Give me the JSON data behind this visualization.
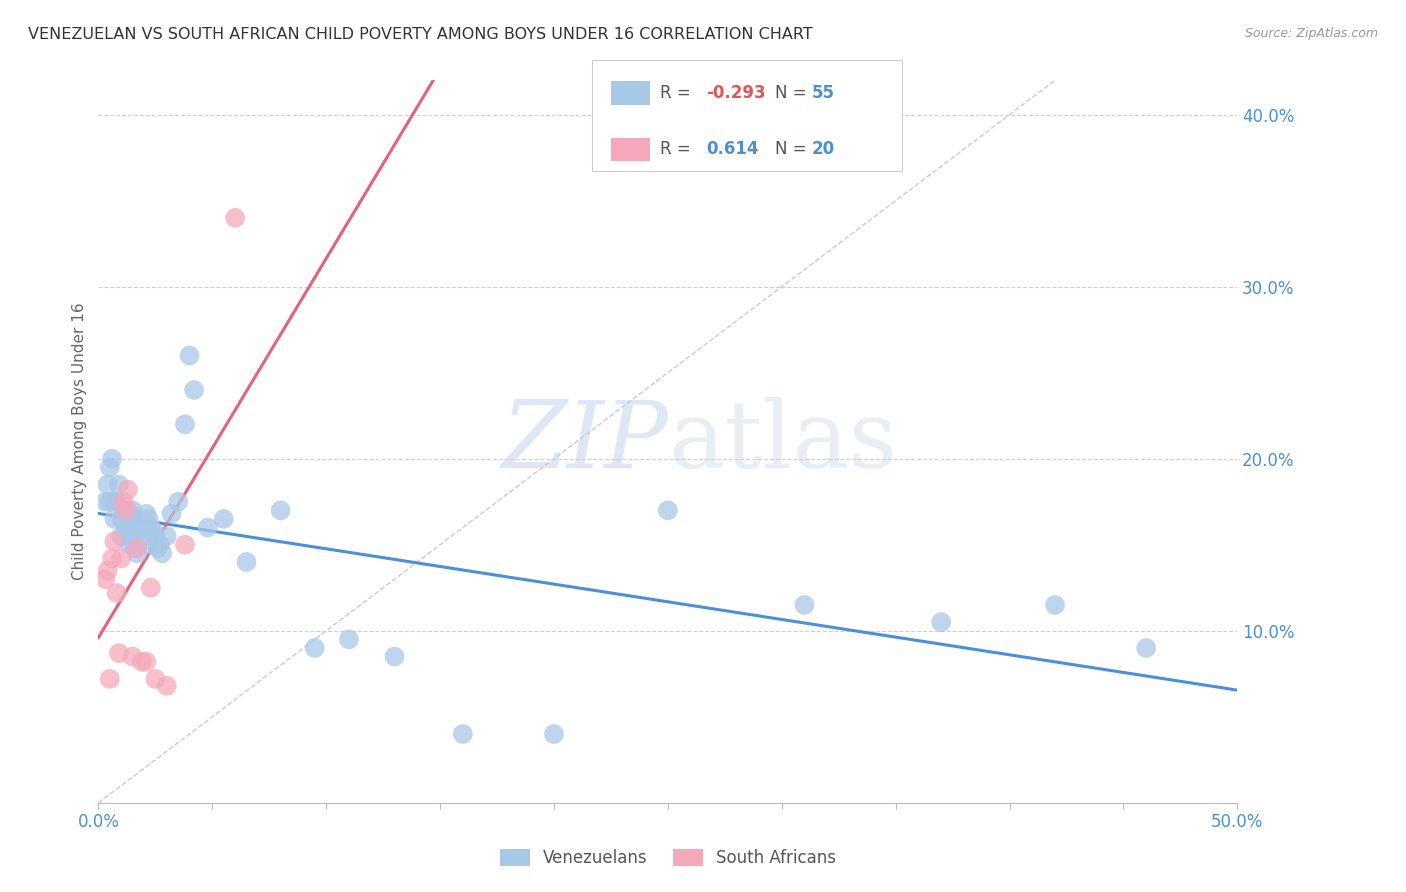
{
  "title": "VENEZUELAN VS SOUTH AFRICAN CHILD POVERTY AMONG BOYS UNDER 16 CORRELATION CHART",
  "source": "Source: ZipAtlas.com",
  "ylabel": "Child Poverty Among Boys Under 16",
  "xlim": [
    0.0,
    0.5
  ],
  "ylim": [
    0.0,
    0.42
  ],
  "xticks": [
    0.0,
    0.05,
    0.1,
    0.15,
    0.2,
    0.25,
    0.3,
    0.35,
    0.4,
    0.45,
    0.5
  ],
  "xtick_labels": [
    "0.0%",
    "",
    "",
    "",
    "",
    "",
    "",
    "",
    "",
    "",
    "50.0%"
  ],
  "yticks": [
    0.1,
    0.2,
    0.3,
    0.4
  ],
  "ytick_labels": [
    "10.0%",
    "20.0%",
    "30.0%",
    "40.0%"
  ],
  "background_color": "#ffffff",
  "grid_color": "#d0d0d0",
  "watermark_zip": "ZIP",
  "watermark_atlas": "atlas",
  "venezuelan_color": "#a8c8e8",
  "sa_color": "#f5a8bc",
  "venezuelan_line_color": "#4a90d9",
  "sa_line_color": "#e8607a",
  "diagonal_color": "#cccccc",
  "tick_color": "#4a90d9",
  "label_color": "#666666",
  "legend_border_color": "#cccccc",
  "venezuelan_x": [
    0.003,
    0.004,
    0.005,
    0.005,
    0.006,
    0.007,
    0.007,
    0.008,
    0.009,
    0.01,
    0.01,
    0.011,
    0.012,
    0.013,
    0.013,
    0.014,
    0.014,
    0.015,
    0.015,
    0.016,
    0.016,
    0.017,
    0.017,
    0.018,
    0.019,
    0.02,
    0.021,
    0.022,
    0.022,
    0.023,
    0.024,
    0.025,
    0.026,
    0.027,
    0.028,
    0.03,
    0.032,
    0.035,
    0.038,
    0.04,
    0.042,
    0.048,
    0.055,
    0.065,
    0.08,
    0.095,
    0.11,
    0.13,
    0.16,
    0.2,
    0.25,
    0.31,
    0.37,
    0.42,
    0.46
  ],
  "venezuelan_y": [
    0.175,
    0.185,
    0.195,
    0.175,
    0.2,
    0.175,
    0.165,
    0.175,
    0.185,
    0.165,
    0.155,
    0.17,
    0.16,
    0.17,
    0.155,
    0.165,
    0.15,
    0.17,
    0.155,
    0.165,
    0.148,
    0.16,
    0.145,
    0.158,
    0.16,
    0.155,
    0.168,
    0.165,
    0.15,
    0.16,
    0.158,
    0.155,
    0.148,
    0.15,
    0.145,
    0.155,
    0.168,
    0.175,
    0.22,
    0.26,
    0.24,
    0.16,
    0.165,
    0.14,
    0.17,
    0.09,
    0.095,
    0.085,
    0.04,
    0.04,
    0.17,
    0.115,
    0.105,
    0.115,
    0.09
  ],
  "sa_x": [
    0.003,
    0.004,
    0.005,
    0.006,
    0.007,
    0.008,
    0.009,
    0.01,
    0.011,
    0.012,
    0.013,
    0.015,
    0.017,
    0.019,
    0.021,
    0.023,
    0.025,
    0.03,
    0.038,
    0.06
  ],
  "sa_y": [
    0.13,
    0.135,
    0.072,
    0.142,
    0.152,
    0.122,
    0.087,
    0.142,
    0.175,
    0.17,
    0.182,
    0.085,
    0.148,
    0.082,
    0.082,
    0.125,
    0.072,
    0.068,
    0.15,
    0.34
  ]
}
